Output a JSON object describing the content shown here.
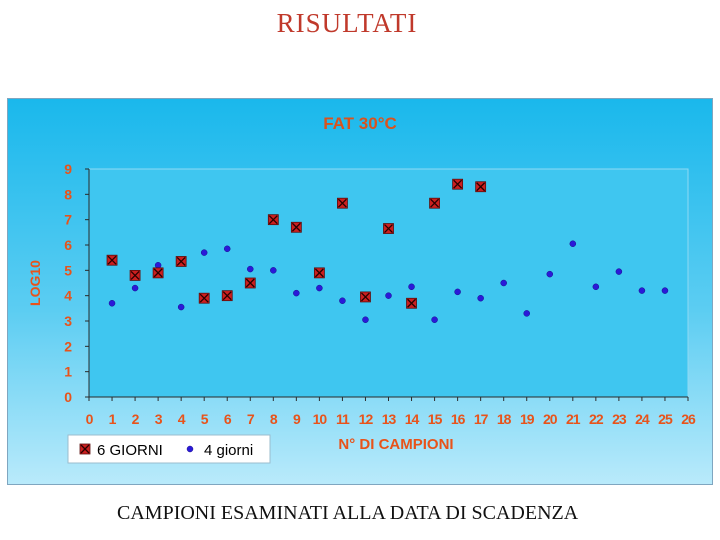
{
  "slide": {
    "title": "RISULTATI",
    "caption": "CAMPIONI ESAMINATI ALLA DATA DI SCADENZA"
  },
  "colors": {
    "title": "#c0392b",
    "chart_title": "#d9531e",
    "axis_text": "#e8531a",
    "series_6": "#cc1f1f",
    "series_4": "#2a1ad9"
  },
  "chart_data": {
    "type": "scatter",
    "title": "FAT 30°C",
    "xlabel": "N° DI CAMPIONI",
    "ylabel": "LOG10",
    "xlim": [
      0,
      26
    ],
    "ylim": [
      0,
      9
    ],
    "xticks": [
      0,
      1,
      2,
      3,
      4,
      5,
      6,
      7,
      8,
      9,
      10,
      11,
      12,
      13,
      14,
      15,
      16,
      17,
      18,
      19,
      20,
      21,
      22,
      23,
      24,
      25,
      26
    ],
    "yticks": [
      0,
      1,
      2,
      3,
      4,
      5,
      6,
      7,
      8,
      9
    ],
    "grid": false,
    "legend": "bottom-left",
    "series": [
      {
        "name": "6 GIORNI",
        "marker": "square-x",
        "x": [
          1,
          2,
          3,
          4,
          5,
          6,
          7,
          8,
          9,
          10,
          11,
          12,
          13,
          14,
          15,
          16,
          17
        ],
        "y": [
          5.4,
          4.8,
          4.9,
          5.35,
          3.9,
          4.0,
          4.5,
          7.0,
          6.7,
          4.9,
          7.65,
          3.95,
          6.65,
          3.7,
          7.65,
          8.4,
          8.3
        ]
      },
      {
        "name": "4 giorni",
        "marker": "circle",
        "x": [
          1,
          2,
          3,
          4,
          5,
          6,
          7,
          8,
          9,
          10,
          11,
          12,
          13,
          14,
          15,
          16,
          17,
          18,
          19,
          20,
          21,
          22,
          23,
          24,
          25
        ],
        "y": [
          3.7,
          4.3,
          5.2,
          3.55,
          5.7,
          5.85,
          5.05,
          5.0,
          4.1,
          4.3,
          3.8,
          3.05,
          4.0,
          4.35,
          3.05,
          4.15,
          3.9,
          4.5,
          3.3,
          4.85,
          6.05,
          4.35,
          4.95,
          4.2,
          4.2
        ]
      }
    ]
  }
}
